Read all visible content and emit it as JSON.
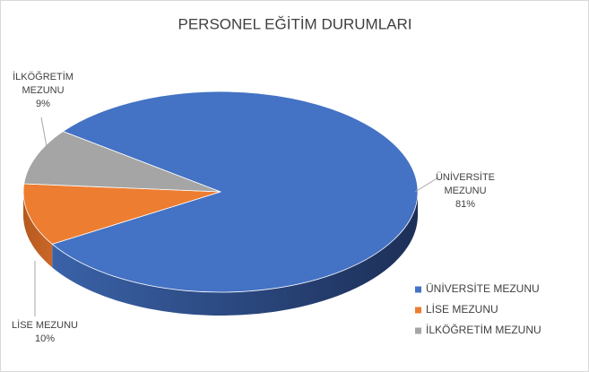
{
  "chart_data": {
    "type": "pie",
    "title": "PERSONEL EĞİTİM DURUMLARI",
    "categories": [
      "ÜNİVERSİTE MEZUNU",
      "LİSE MEZUNU",
      "İLKÖĞRETİM MEZUNU"
    ],
    "values": [
      81,
      10,
      9
    ],
    "value_labels": [
      "81%",
      "10%",
      "9%"
    ],
    "colors": [
      "#4472c4",
      "#ed7d31",
      "#a5a5a5"
    ],
    "legend": "right"
  }
}
